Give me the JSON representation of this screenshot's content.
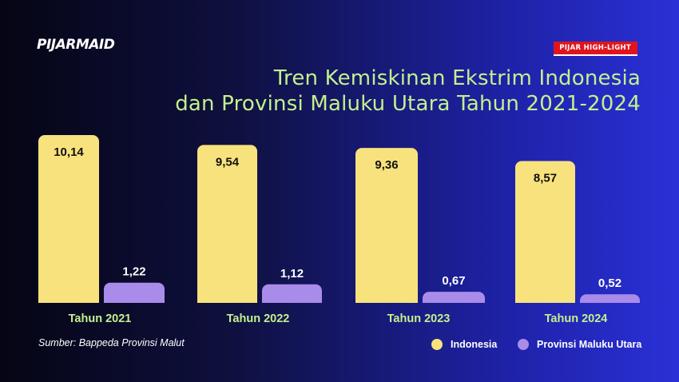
{
  "header": {
    "logo_text": "PIJARMAID",
    "badge_text": "PIJAR HIGH-LIGHT",
    "title_line1": "Tren Kemiskinan Ekstrim Indonesia",
    "title_line2": "dan Provinsi Maluku Utara Tahun 2021-2024"
  },
  "footer": {
    "source": "Sumber: Bappeda Provinsi Malut"
  },
  "legend": [
    {
      "label": "Indonesia",
      "color": "#f8e27d"
    },
    {
      "label": "Provinsi Maluku Utara",
      "color": "#a98be9"
    }
  ],
  "colors": {
    "label_text": "#ffffff",
    "category_text": "#c3f08e",
    "value_text_on_bar": "#111111"
  },
  "chart_data": {
    "type": "bar",
    "categories": [
      "Tahun 2021",
      "Tahun 2022",
      "Tahun 2023",
      "Tahun 2024"
    ],
    "series": [
      {
        "name": "Indonesia",
        "values": [
          10.14,
          9.54,
          9.36,
          8.57
        ],
        "labels": [
          "10,14",
          "9,54",
          "9,36",
          "8,57"
        ]
      },
      {
        "name": "Provinsi Maluku Utara",
        "values": [
          1.22,
          1.12,
          0.67,
          0.52
        ],
        "labels": [
          "1,22",
          "1,12",
          "0,67",
          "0,52"
        ]
      }
    ],
    "xlabel": "",
    "ylabel": "",
    "ylim": [
      0,
      10.14
    ],
    "grid": false,
    "legend_position": "bottom-right"
  }
}
